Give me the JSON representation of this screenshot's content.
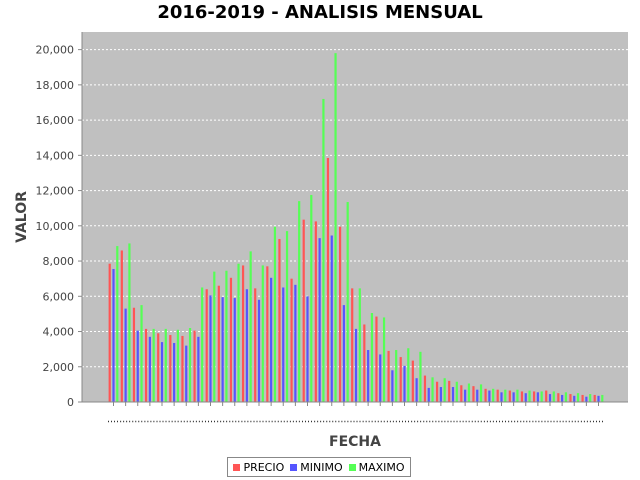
{
  "chart_data": {
    "type": "bar",
    "title": "2016-2019 - ANALISIS MENSUAL",
    "xlabel": "FECHA",
    "ylabel": "VALOR",
    "ylim": [
      0,
      21000
    ],
    "yticks": [
      0,
      2000,
      4000,
      6000,
      8000,
      10000,
      12000,
      14000,
      16000,
      18000,
      20000
    ],
    "ytick_labels": [
      "0",
      "2,000",
      "4,000",
      "6,000",
      "8,000",
      "10,000",
      "12,000",
      "14,000",
      "16,000",
      "18,000",
      "20,000"
    ],
    "grid": true,
    "legend_position": "bottom-center",
    "category_labels_visible": false,
    "series": [
      {
        "name": "PRECIO",
        "color": "#ff5555",
        "values": [
          7850,
          8600,
          5350,
          4150,
          3900,
          3800,
          3750,
          4050,
          6400,
          6600,
          7050,
          7750,
          6450,
          7700,
          9250,
          7000,
          10350,
          10250,
          13850,
          9950,
          6450,
          4400,
          4850,
          2900,
          2550,
          2350,
          1500,
          1150,
          1200,
          950,
          900,
          750,
          700,
          650,
          600,
          600,
          650,
          500,
          450,
          400,
          400
        ]
      },
      {
        "name": "MINIMO",
        "color": "#5555ff",
        "values": [
          7550,
          5300,
          4050,
          3700,
          3400,
          3350,
          3200,
          3700,
          6050,
          5950,
          5900,
          6400,
          5800,
          7050,
          6500,
          6650,
          6000,
          9300,
          9450,
          5500,
          4150,
          2950,
          2700,
          1800,
          2050,
          1350,
          800,
          850,
          850,
          700,
          700,
          650,
          550,
          550,
          500,
          550,
          450,
          400,
          350,
          300,
          350
        ]
      },
      {
        "name": "MAXIMO",
        "color": "#55ff55",
        "values": [
          8850,
          9000,
          5500,
          4150,
          4150,
          4100,
          4200,
          6500,
          7400,
          7450,
          7850,
          8550,
          7750,
          9950,
          9700,
          11400,
          11750,
          17200,
          19800,
          11350,
          6450,
          5050,
          4800,
          2950,
          3050,
          2850,
          1400,
          1350,
          1150,
          1050,
          1000,
          750,
          700,
          700,
          650,
          600,
          600,
          550,
          500,
          450,
          400
        ]
      }
    ]
  }
}
